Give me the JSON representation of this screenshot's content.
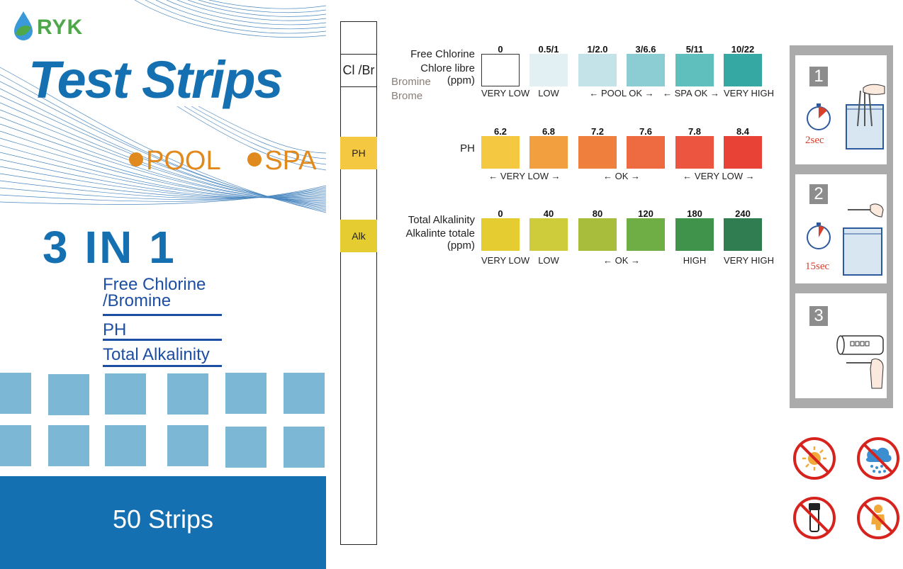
{
  "brand": {
    "logo": "RYK",
    "title": "Test Strips",
    "pool": "POOL",
    "spa": "SPA"
  },
  "product": {
    "headline": "3 IN 1",
    "features": [
      "Free Chlorine",
      "/Bromine",
      "PH",
      "Total Alkalinity"
    ],
    "count_label": "50 Strips"
  },
  "strip": {
    "pads": [
      "Cl /Br",
      "PH",
      "Alk"
    ]
  },
  "chart": {
    "chlorine": {
      "label_lines": [
        "Free Chlorine",
        "Chlore libre",
        "(ppm)"
      ],
      "bromine_lines": [
        "Bromine",
        "Brome"
      ],
      "values": [
        "0",
        "0.5/1",
        "1/2.0",
        "3/6.6",
        "5/11",
        "10/22"
      ],
      "colors": [
        "#ffffff",
        "#e3f0f3",
        "#c4e3e8",
        "#8ccdd3",
        "#5fbfbd",
        "#35a8a3"
      ],
      "captions": [
        "VERY LOW",
        "LOW",
        "← POOL OK →",
        "← SPA OK →",
        "VERY HIGH"
      ]
    },
    "ph": {
      "label": "PH",
      "values": [
        "6.2",
        "6.8",
        "7.2",
        "7.6",
        "7.8",
        "8.4"
      ],
      "colors": [
        "#f5c842",
        "#f2a03f",
        "#ef7f3d",
        "#ee6a40",
        "#ec5640",
        "#e84136"
      ],
      "captions": [
        "← VERY LOW →",
        "← OK →",
        "← VERY LOW →"
      ]
    },
    "alkalinity": {
      "label_lines": [
        "Total Alkalinity",
        "Alkalinte totale",
        "(ppm)"
      ],
      "values": [
        "0",
        "40",
        "80",
        "120",
        "180",
        "240"
      ],
      "colors": [
        "#e5cc30",
        "#cfcc3c",
        "#a8bd3c",
        "#6fae44",
        "#3f934a",
        "#2f7d51"
      ],
      "captions": [
        "VERY LOW",
        "LOW",
        "← OK →",
        "HIGH",
        "VERY HIGH"
      ]
    }
  },
  "instructions": {
    "steps": [
      {
        "number": "1",
        "time": "2sec"
      },
      {
        "number": "2",
        "time": "15sec"
      },
      {
        "number": "3"
      }
    ]
  },
  "warnings": [
    "no-sun-icon",
    "no-rain-icon",
    "no-bottle-icon",
    "no-child-icon"
  ]
}
